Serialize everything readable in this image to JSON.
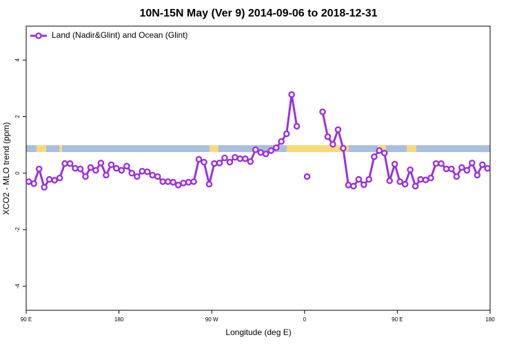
{
  "chart_data": {
    "type": "line",
    "title": "10N-15N May (Ver 9)   2014-09-06 to 2018-12-31",
    "x_label": "Longitude (deg E)",
    "y_label": "XCO2 - MLO trend (ppm)",
    "x": [
      92.5,
      97.5,
      102.5,
      107.5,
      112.5,
      117.5,
      122.5,
      127.5,
      132.5,
      137.5,
      142.5,
      147.5,
      152.5,
      157.5,
      162.5,
      167.5,
      172.5,
      177.5,
      182.5,
      187.5,
      192.5,
      197.5,
      202.5,
      207.5,
      212.5,
      217.5,
      222.5,
      227.5,
      232.5,
      237.5,
      242.5,
      247.5,
      252.5,
      257.5,
      262.5,
      267.5,
      272.5,
      277.5,
      282.5,
      287.5,
      292.5,
      297.5,
      302.5,
      307.5,
      312.5,
      317.5,
      322.5,
      327.5,
      332.5,
      337.5,
      342.5,
      347.5,
      352.5,
      357.5,
      362.5,
      367.5,
      372.5,
      377.5,
      382.5,
      387.5,
      392.5,
      397.5,
      402.5,
      407.5,
      412.5,
      417.5,
      422.5,
      427.5,
      432.5,
      437.5,
      442.5,
      447.5,
      452.5,
      457.5,
      462.5,
      467.5,
      472.5,
      477.5,
      482.5,
      487.5,
      492.5,
      497.5,
      502.5,
      507.5,
      512.5,
      517.5,
      522.5,
      527.5,
      532.5,
      537.5
    ],
    "series": [
      {
        "name": "Land (Nadir&Glint) and Ocean (Glint)",
        "color": "#9b30e0",
        "values": [
          -0.3,
          -0.37,
          0.15,
          -0.5,
          -0.22,
          -0.25,
          -0.17,
          0.34,
          0.34,
          0.17,
          0.15,
          -0.12,
          0.2,
          0.1,
          0.36,
          -0.07,
          0.3,
          0.17,
          0.1,
          0.25,
          0,
          -0.12,
          0.07,
          0.05,
          -0.07,
          -0.12,
          -0.3,
          -0.3,
          -0.32,
          -0.42,
          -0.35,
          -0.32,
          -0.3,
          0.49,
          0.39,
          -0.39,
          0.34,
          0.36,
          0.54,
          0.39,
          0.56,
          0.51,
          0.51,
          0.41,
          0.83,
          0.73,
          0.68,
          0.8,
          0.9,
          1.12,
          1.39,
          2.78,
          1.66,
          null,
          -0.12,
          null,
          null,
          2.17,
          1.29,
          1.02,
          1.54,
          0.88,
          -0.42,
          -0.46,
          -0.22,
          -0.41,
          -0.22,
          0.58,
          0.8,
          0.71,
          -0.27,
          0.32,
          -0.3,
          -0.39,
          0.12,
          -0.46,
          -0.22,
          -0.24,
          -0.17,
          0.34,
          0.34,
          0.15,
          0.15,
          -0.12,
          0.2,
          0.1,
          0.36,
          -0.07,
          0.3,
          0.17
        ]
      }
    ],
    "xlim": [
      90,
      540
    ],
    "xticks": [
      {
        "value": 90,
        "label": "90 E"
      },
      180,
      {
        "value": 270,
        "label": "90 W"
      },
      {
        "value": 360,
        "label": "0"
      },
      {
        "value": 450,
        "label": "90 E"
      },
      {
        "value": 540,
        "label": "180"
      }
    ],
    "ylim": [
      -4.85,
      5.2
    ],
    "yticks": [
      -4,
      -2,
      0,
      2,
      4
    ],
    "legend": "upper left"
  }
}
